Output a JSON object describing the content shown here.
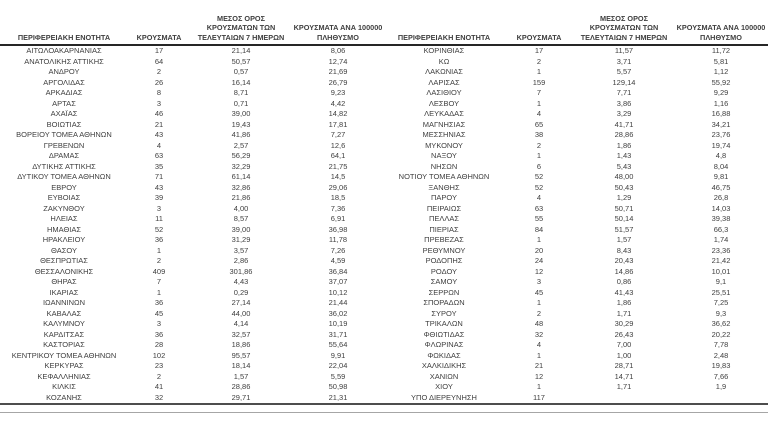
{
  "colors": {
    "text": "#3f3f3f",
    "header-border": "#262626",
    "bottom-border": "#4d4d4d",
    "rule": "#a6a6a6",
    "bg": "#ffffff"
  },
  "table": {
    "header": {
      "region": "ΠΕΡΙΦΕΡΕΙΑΚΗ ΕΝΟΤΗΤΑ",
      "cases": "ΚΡΟΥΣΜΑΤΑ",
      "avg7": "ΜΕΣΟΣ ΟΡΟΣ\nΚΡΟΥΣΜΑΤΩΝ ΤΩΝ\nΤΕΛΕΥΤΑΙΩΝ 7 ΗΜΕΡΩΝ",
      "per100k": "ΚΡΟΥΣΜΑΤΑ ΑΝΑ 100000\nΠΛΗΘΥΣΜΟ"
    },
    "left_rows": [
      [
        "ΑΙΤΩΛΟΑΚΑΡΝΑΝΙΑΣ",
        "17",
        "21,14",
        "8,06"
      ],
      [
        "ΑΝΑΤΟΛΙΚΗΣ ΑΤΤΙΚΗΣ",
        "64",
        "50,57",
        "12,74"
      ],
      [
        "ΑΝΔΡΟΥ",
        "2",
        "0,57",
        "21,69"
      ],
      [
        "ΑΡΓΟΛΙΔΑΣ",
        "26",
        "16,14",
        "26,79"
      ],
      [
        "ΑΡΚΑΔΙΑΣ",
        "8",
        "8,71",
        "9,23"
      ],
      [
        "ΑΡΤΑΣ",
        "3",
        "0,71",
        "4,42"
      ],
      [
        "ΑΧΑΪΑΣ",
        "46",
        "39,00",
        "14,82"
      ],
      [
        "ΒΟΙΩΤΙΑΣ",
        "21",
        "19,43",
        "17,81"
      ],
      [
        "ΒΟΡΕΙΟΥ ΤΟΜΕΑ ΑΘΗΝΩΝ",
        "43",
        "41,86",
        "7,27"
      ],
      [
        "ΓΡΕΒΕΝΩΝ",
        "4",
        "2,57",
        "12,6"
      ],
      [
        "ΔΡΑΜΑΣ",
        "63",
        "56,29",
        "64,1"
      ],
      [
        "ΔΥΤΙΚΗΣ ΑΤΤΙΚΗΣ",
        "35",
        "32,29",
        "21,75"
      ],
      [
        "ΔΥΤΙΚΟΥ ΤΟΜΕΑ ΑΘΗΝΩΝ",
        "71",
        "61,14",
        "14,5"
      ],
      [
        "ΕΒΡΟΥ",
        "43",
        "32,86",
        "29,06"
      ],
      [
        "ΕΥΒΟΙΑΣ",
        "39",
        "21,86",
        "18,5"
      ],
      [
        "ΖΑΚΥΝΘΟΥ",
        "3",
        "4,00",
        "7,36"
      ],
      [
        "ΗΛΕΙΑΣ",
        "11",
        "8,57",
        "6,91"
      ],
      [
        "ΗΜΑΘΙΑΣ",
        "52",
        "39,00",
        "36,98"
      ],
      [
        "ΗΡΑΚΛΕΙΟΥ",
        "36",
        "31,29",
        "11,78"
      ],
      [
        "ΘΑΣΟΥ",
        "1",
        "3,57",
        "7,26"
      ],
      [
        "ΘΕΣΠΡΩΤΙΑΣ",
        "2",
        "2,86",
        "4,59"
      ],
      [
        "ΘΕΣΣΑΛΟΝΙΚΗΣ",
        "409",
        "301,86",
        "36,84"
      ],
      [
        "ΘΗΡΑΣ",
        "7",
        "4,43",
        "37,07"
      ],
      [
        "ΙΚΑΡΙΑΣ",
        "1",
        "0,29",
        "10,12"
      ],
      [
        "ΙΩΑΝΝΙΝΩΝ",
        "36",
        "27,14",
        "21,44"
      ],
      [
        "ΚΑΒΑΛΑΣ",
        "45",
        "44,00",
        "36,02"
      ],
      [
        "ΚΑΛΥΜΝΟΥ",
        "3",
        "4,14",
        "10,19"
      ],
      [
        "ΚΑΡΔΙΤΣΑΣ",
        "36",
        "32,57",
        "31,71"
      ],
      [
        "ΚΑΣΤΟΡΙΑΣ",
        "28",
        "18,86",
        "55,64"
      ],
      [
        "ΚΕΝΤΡΙΚΟΥ ΤΟΜΕΑ ΑΘΗΝΩΝ",
        "102",
        "95,57",
        "9,91"
      ],
      [
        "ΚΕΡΚΥΡΑΣ",
        "23",
        "18,14",
        "22,04"
      ],
      [
        "ΚΕΦΑΛΛΗΝΙΑΣ",
        "2",
        "1,57",
        "5,59"
      ],
      [
        "ΚΙΛΚΙΣ",
        "41",
        "28,86",
        "50,98"
      ],
      [
        "ΚΟΖΑΝΗΣ",
        "32",
        "29,71",
        "21,31"
      ]
    ],
    "right_rows": [
      [
        "ΚΟΡΙΝΘΙΑΣ",
        "17",
        "11,57",
        "11,72"
      ],
      [
        "ΚΩ",
        "2",
        "3,71",
        "5,81"
      ],
      [
        "ΛΑΚΩΝΙΑΣ",
        "1",
        "5,57",
        "1,12"
      ],
      [
        "ΛΑΡΙΣΑΣ",
        "159",
        "129,14",
        "55,92"
      ],
      [
        "ΛΑΣΙΘΙΟΥ",
        "7",
        "7,71",
        "9,29"
      ],
      [
        "ΛΕΣΒΟΥ",
        "1",
        "3,86",
        "1,16"
      ],
      [
        "ΛΕΥΚΑΔΑΣ",
        "4",
        "3,29",
        "16,88"
      ],
      [
        "ΜΑΓΝΗΣΙΑΣ",
        "65",
        "41,71",
        "34,21"
      ],
      [
        "ΜΕΣΣΗΝΙΑΣ",
        "38",
        "28,86",
        "23,76"
      ],
      [
        "ΜΥΚΟΝΟΥ",
        "2",
        "1,86",
        "19,74"
      ],
      [
        "ΝΑΞΟΥ",
        "1",
        "1,43",
        "4,8"
      ],
      [
        "ΝΗΣΩΝ",
        "6",
        "5,43",
        "8,04"
      ],
      [
        "ΝΟΤΙΟΥ ΤΟΜΕΑ ΑΘΗΝΩΝ",
        "52",
        "48,00",
        "9,81"
      ],
      [
        "ΞΑΝΘΗΣ",
        "52",
        "50,43",
        "46,75"
      ],
      [
        "ΠΑΡΟΥ",
        "4",
        "1,29",
        "26,8"
      ],
      [
        "ΠΕΙΡΑΙΩΣ",
        "63",
        "50,71",
        "14,03"
      ],
      [
        "ΠΕΛΛΑΣ",
        "55",
        "50,14",
        "39,38"
      ],
      [
        "ΠΙΕΡΙΑΣ",
        "84",
        "51,57",
        "66,3"
      ],
      [
        "ΠΡΕΒΕΖΑΣ",
        "1",
        "1,57",
        "1,74"
      ],
      [
        "ΡΕΘΥΜΝΟΥ",
        "20",
        "8,43",
        "23,36"
      ],
      [
        "ΡΟΔΟΠΗΣ",
        "24",
        "20,43",
        "21,42"
      ],
      [
        "ΡΟΔΟΥ",
        "12",
        "14,86",
        "10,01"
      ],
      [
        "ΣΑΜΟΥ",
        "3",
        "0,86",
        "9,1"
      ],
      [
        "ΣΕΡΡΩΝ",
        "45",
        "41,43",
        "25,51"
      ],
      [
        "ΣΠΟΡΑΔΩΝ",
        "1",
        "1,86",
        "7,25"
      ],
      [
        "ΣΥΡΟΥ",
        "2",
        "1,71",
        "9,3"
      ],
      [
        "ΤΡΙΚΑΛΩΝ",
        "48",
        "30,29",
        "36,62"
      ],
      [
        "ΦΘΙΩΤΙΔΑΣ",
        "32",
        "26,43",
        "20,22"
      ],
      [
        "ΦΛΩΡΙΝΑΣ",
        "4",
        "7,00",
        "7,78"
      ],
      [
        "ΦΩΚΙΔΑΣ",
        "1",
        "1,00",
        "2,48"
      ],
      [
        "ΧΑΛΚΙΔΙΚΗΣ",
        "21",
        "28,71",
        "19,83"
      ],
      [
        "ΧΑΝΙΩΝ",
        "12",
        "14,71",
        "7,66"
      ],
      [
        "ΧΙΟΥ",
        "1",
        "1,71",
        "1,9"
      ],
      [
        "ΥΠΟ ΔΙΕΡΕΥΝΗΣΗ",
        "117",
        "",
        ""
      ]
    ]
  }
}
